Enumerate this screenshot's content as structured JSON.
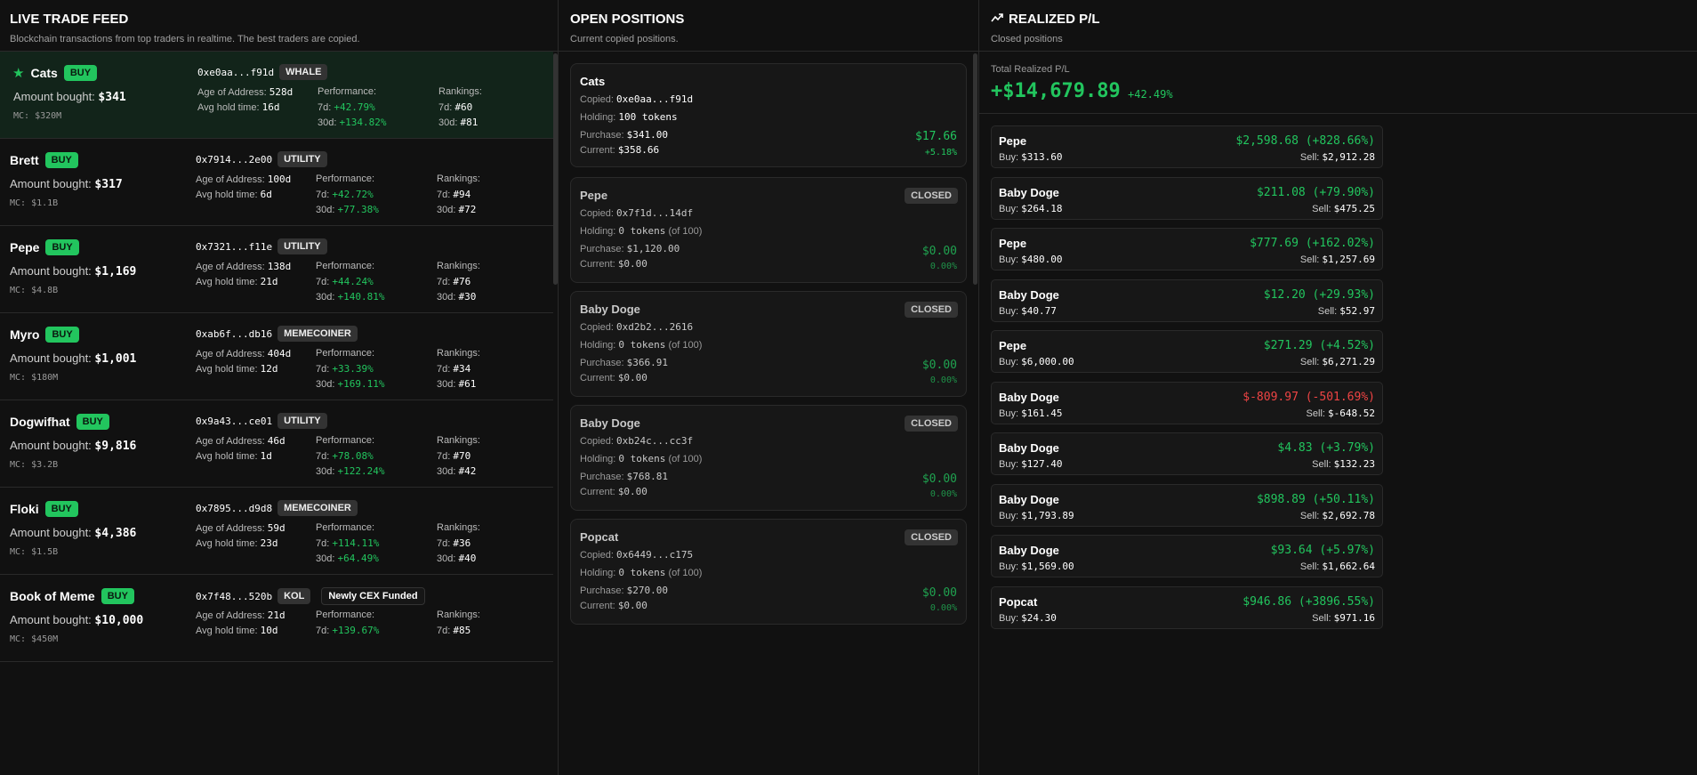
{
  "feed": {
    "title": "LIVE TRADE FEED",
    "subtitle": "Blockchain transactions from top traders in realtime. The best traders are copied.",
    "labels": {
      "action": "BUY",
      "amount": "Amount bought:",
      "age": "Age of Address:",
      "hold": "Avg hold time:",
      "performance": "Performance:",
      "rankings": "Rankings:",
      "d7": "7d:",
      "d30": "30d:"
    },
    "trades": [
      {
        "token": "Cats",
        "starred": true,
        "amount": "$341",
        "mc": "MC: $320M",
        "address": "0xe0aa...f91d",
        "tags": [
          "WHALE"
        ],
        "age": "528d",
        "hold": "16d",
        "perf7": "+42.79%",
        "perf30": "+134.82%",
        "rank7": "#60",
        "rank30": "#81"
      },
      {
        "token": "Brett",
        "amount": "$317",
        "mc": "MC: $1.1B",
        "address": "0x7914...2e00",
        "tags": [
          "UTILITY"
        ],
        "age": "100d",
        "hold": "6d",
        "perf7": "+42.72%",
        "perf30": "+77.38%",
        "rank7": "#94",
        "rank30": "#72"
      },
      {
        "token": "Pepe",
        "amount": "$1,169",
        "mc": "MC: $4.8B",
        "address": "0x7321...f11e",
        "tags": [
          "UTILITY"
        ],
        "age": "138d",
        "hold": "21d",
        "perf7": "+44.24%",
        "perf30": "+140.81%",
        "rank7": "#76",
        "rank30": "#30"
      },
      {
        "token": "Myro",
        "amount": "$1,001",
        "mc": "MC: $180M",
        "address": "0xab6f...db16",
        "tags": [
          "MEMECOINER"
        ],
        "age": "404d",
        "hold": "12d",
        "perf7": "+33.39%",
        "perf30": "+169.11%",
        "rank7": "#34",
        "rank30": "#61"
      },
      {
        "token": "Dogwifhat",
        "amount": "$9,816",
        "mc": "MC: $3.2B",
        "address": "0x9a43...ce01",
        "tags": [
          "UTILITY"
        ],
        "age": "46d",
        "hold": "1d",
        "perf7": "+78.08%",
        "perf30": "+122.24%",
        "rank7": "#70",
        "rank30": "#42"
      },
      {
        "token": "Floki",
        "amount": "$4,386",
        "mc": "MC: $1.5B",
        "address": "0x7895...d9d8",
        "tags": [
          "MEMECOINER"
        ],
        "age": "59d",
        "hold": "23d",
        "perf7": "+114.11%",
        "perf30": "+64.49%",
        "rank7": "#36",
        "rank30": "#40"
      },
      {
        "token": "Book of Meme",
        "amount": "$10,000",
        "mc": "MC: $450M",
        "address": "0x7f48...520b",
        "tags": [
          "KOL",
          "Newly CEX Funded"
        ],
        "age": "21d",
        "hold": "10d",
        "perf7": "+139.67%",
        "rank7": "#85"
      }
    ]
  },
  "positions": {
    "title": "OPEN POSITIONS",
    "subtitle": "Current copied positions.",
    "labels": {
      "copied": "Copied:",
      "holding": "Holding:",
      "purchase": "Purchase:",
      "current": "Current:",
      "closed": "CLOSED"
    },
    "items": [
      {
        "token": "Cats",
        "closed": false,
        "copied": "0xe0aa...f91d",
        "holding": "100 tokens",
        "purchase": "$341.00",
        "current": "$358.66",
        "pnl": "$17.66",
        "pct": "+5.18%"
      },
      {
        "token": "Pepe",
        "closed": true,
        "copied": "0x7f1d...14df",
        "holding": "0 tokens",
        "of": "(of 100)",
        "purchase": "$1,120.00",
        "current": "$0.00",
        "pnl": "$0.00",
        "pct": "0.00%"
      },
      {
        "token": "Baby Doge",
        "closed": true,
        "copied": "0xd2b2...2616",
        "holding": "0 tokens",
        "of": "(of 100)",
        "purchase": "$366.91",
        "current": "$0.00",
        "pnl": "$0.00",
        "pct": "0.00%"
      },
      {
        "token": "Baby Doge",
        "closed": true,
        "copied": "0xb24c...cc3f",
        "holding": "0 tokens",
        "of": "(of 100)",
        "purchase": "$768.81",
        "current": "$0.00",
        "pnl": "$0.00",
        "pct": "0.00%"
      },
      {
        "token": "Popcat",
        "closed": true,
        "copied": "0x6449...c175",
        "holding": "0 tokens",
        "of": "(of 100)",
        "purchase": "$270.00",
        "current": "$0.00",
        "pnl": "$0.00",
        "pct": "0.00%"
      }
    ]
  },
  "realized": {
    "title": "REALIZED P/L",
    "subtitle": "Closed positions",
    "total_label": "Total Realized P/L",
    "total": "+$14,679.89",
    "total_pct": "+42.49%",
    "labels": {
      "buy": "Buy:",
      "sell": "Sell:"
    },
    "trades": [
      {
        "token": "Pepe",
        "pnl": "$2,598.68 (+828.66%)",
        "buy": "$313.60",
        "sell": "$2,912.28"
      },
      {
        "token": "Baby Doge",
        "pnl": "$211.08 (+79.90%)",
        "buy": "$264.18",
        "sell": "$475.25"
      },
      {
        "token": "Pepe",
        "pnl": "$777.69 (+162.02%)",
        "buy": "$480.00",
        "sell": "$1,257.69"
      },
      {
        "token": "Baby Doge",
        "pnl": "$12.20 (+29.93%)",
        "buy": "$40.77",
        "sell": "$52.97"
      },
      {
        "token": "Pepe",
        "pnl": "$271.29 (+4.52%)",
        "buy": "$6,000.00",
        "sell": "$6,271.29"
      },
      {
        "token": "Baby Doge",
        "pnl": "$-809.97 (-501.69%)",
        "buy": "$161.45",
        "sell": "$-648.52"
      },
      {
        "token": "Baby Doge",
        "pnl": "$4.83 (+3.79%)",
        "buy": "$127.40",
        "sell": "$132.23"
      },
      {
        "token": "Baby Doge",
        "pnl": "$898.89 (+50.11%)",
        "buy": "$1,793.89",
        "sell": "$2,692.78"
      },
      {
        "token": "Baby Doge",
        "pnl": "$93.64 (+5.97%)",
        "buy": "$1,569.00",
        "sell": "$1,662.64"
      },
      {
        "token": "Popcat",
        "pnl": "$946.86 (+3896.55%)",
        "buy": "$24.30",
        "sell": "$971.16"
      }
    ]
  }
}
